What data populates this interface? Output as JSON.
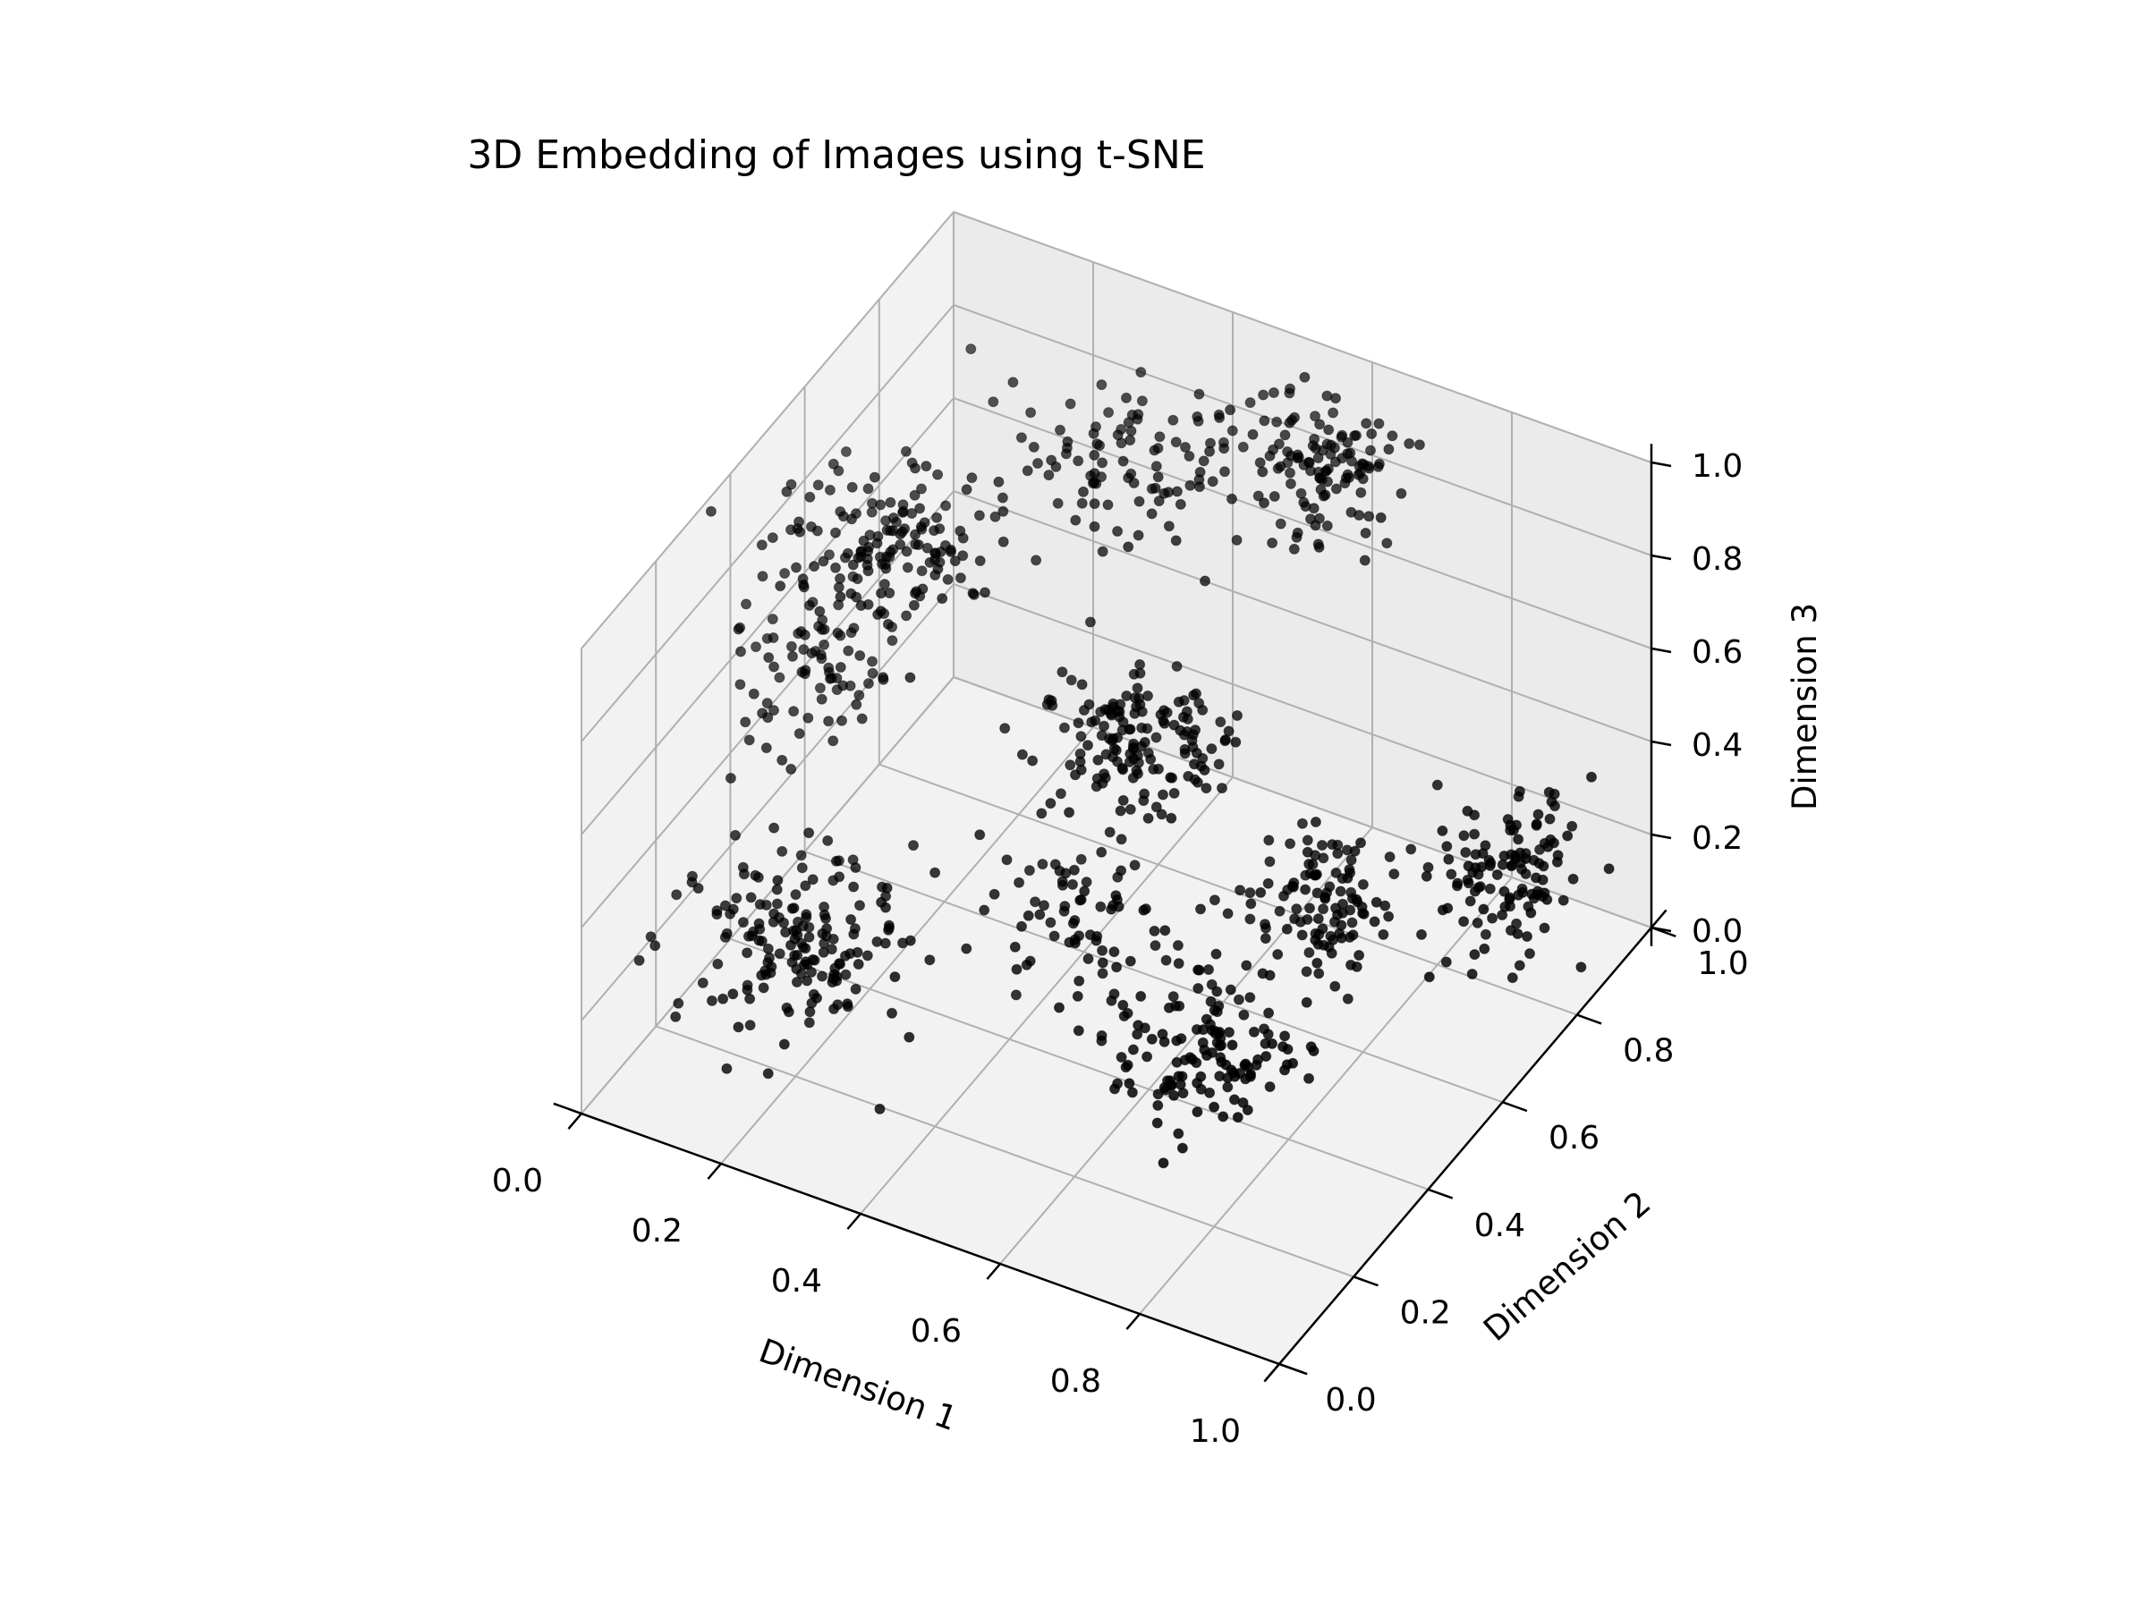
{
  "chart_data": {
    "type": "scatter",
    "title": "3D Embedding of Images using t-SNE",
    "xlabel": "Dimension 1",
    "ylabel": "Dimension 2",
    "zlabel": "Dimension 3",
    "xlim": [
      0,
      1
    ],
    "ylim": [
      0,
      1
    ],
    "zlim": [
      0,
      1
    ],
    "grid": true,
    "point_color": "#000000",
    "pane_color": "#f2f2f2",
    "grid_color": "#b0b0b0",
    "ticks": [
      "0.0",
      "0.2",
      "0.4",
      "0.6",
      "0.8",
      "1.0"
    ],
    "clusters": [
      {
        "center": [
          0.05,
          0.52,
          0.5
        ],
        "count": 80,
        "spread": [
          0.05,
          0.07,
          0.06
        ]
      },
      {
        "center": [
          0.15,
          0.55,
          0.78
        ],
        "count": 150,
        "spread": [
          0.07,
          0.07,
          0.05
        ]
      },
      {
        "center": [
          0.35,
          0.8,
          0.86
        ],
        "count": 100,
        "spread": [
          0.09,
          0.07,
          0.04
        ]
      },
      {
        "center": [
          0.55,
          0.95,
          0.8
        ],
        "count": 120,
        "spread": [
          0.06,
          0.06,
          0.05
        ]
      },
      {
        "center": [
          0.5,
          0.55,
          0.55
        ],
        "count": 150,
        "spread": [
          0.06,
          0.06,
          0.06
        ]
      },
      {
        "center": [
          0.95,
          0.72,
          0.35
        ],
        "count": 120,
        "spread": [
          0.04,
          0.06,
          0.07
        ]
      },
      {
        "center": [
          0.2,
          0.2,
          0.28
        ],
        "count": 170,
        "spread": [
          0.07,
          0.07,
          0.06
        ]
      },
      {
        "center": [
          0.7,
          0.35,
          0.18
        ],
        "count": 140,
        "spread": [
          0.06,
          0.06,
          0.06
        ]
      },
      {
        "center": [
          0.5,
          0.4,
          0.32
        ],
        "count": 70,
        "spread": [
          0.06,
          0.05,
          0.06
        ]
      },
      {
        "center": [
          0.75,
          0.6,
          0.3
        ],
        "count": 110,
        "spread": [
          0.05,
          0.06,
          0.06
        ]
      }
    ]
  }
}
